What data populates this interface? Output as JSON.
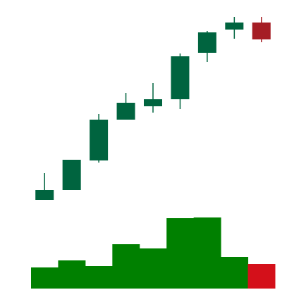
{
  "chart_data": {
    "type": "candlestick",
    "open": [
      16,
      30,
      72,
      130,
      149,
      159,
      225,
      258,
      268
    ],
    "high": [
      54,
      73,
      138,
      168,
      182,
      224,
      256,
      276,
      276
    ],
    "low": [
      16,
      30,
      69,
      130,
      140,
      145,
      212,
      245,
      240
    ],
    "close": [
      30,
      73,
      130,
      154,
      159,
      220,
      254,
      268,
      244
    ],
    "volume": [
      30,
      40,
      32,
      63,
      57,
      100,
      101,
      45,
      35
    ],
    "ylim": [
      0,
      300
    ],
    "y2lim": [
      0,
      100
    ],
    "up_color": "#00643f",
    "down_color": "#a51d24",
    "volume_up_color": "#008000",
    "volume_down_color": "#d4101a"
  }
}
